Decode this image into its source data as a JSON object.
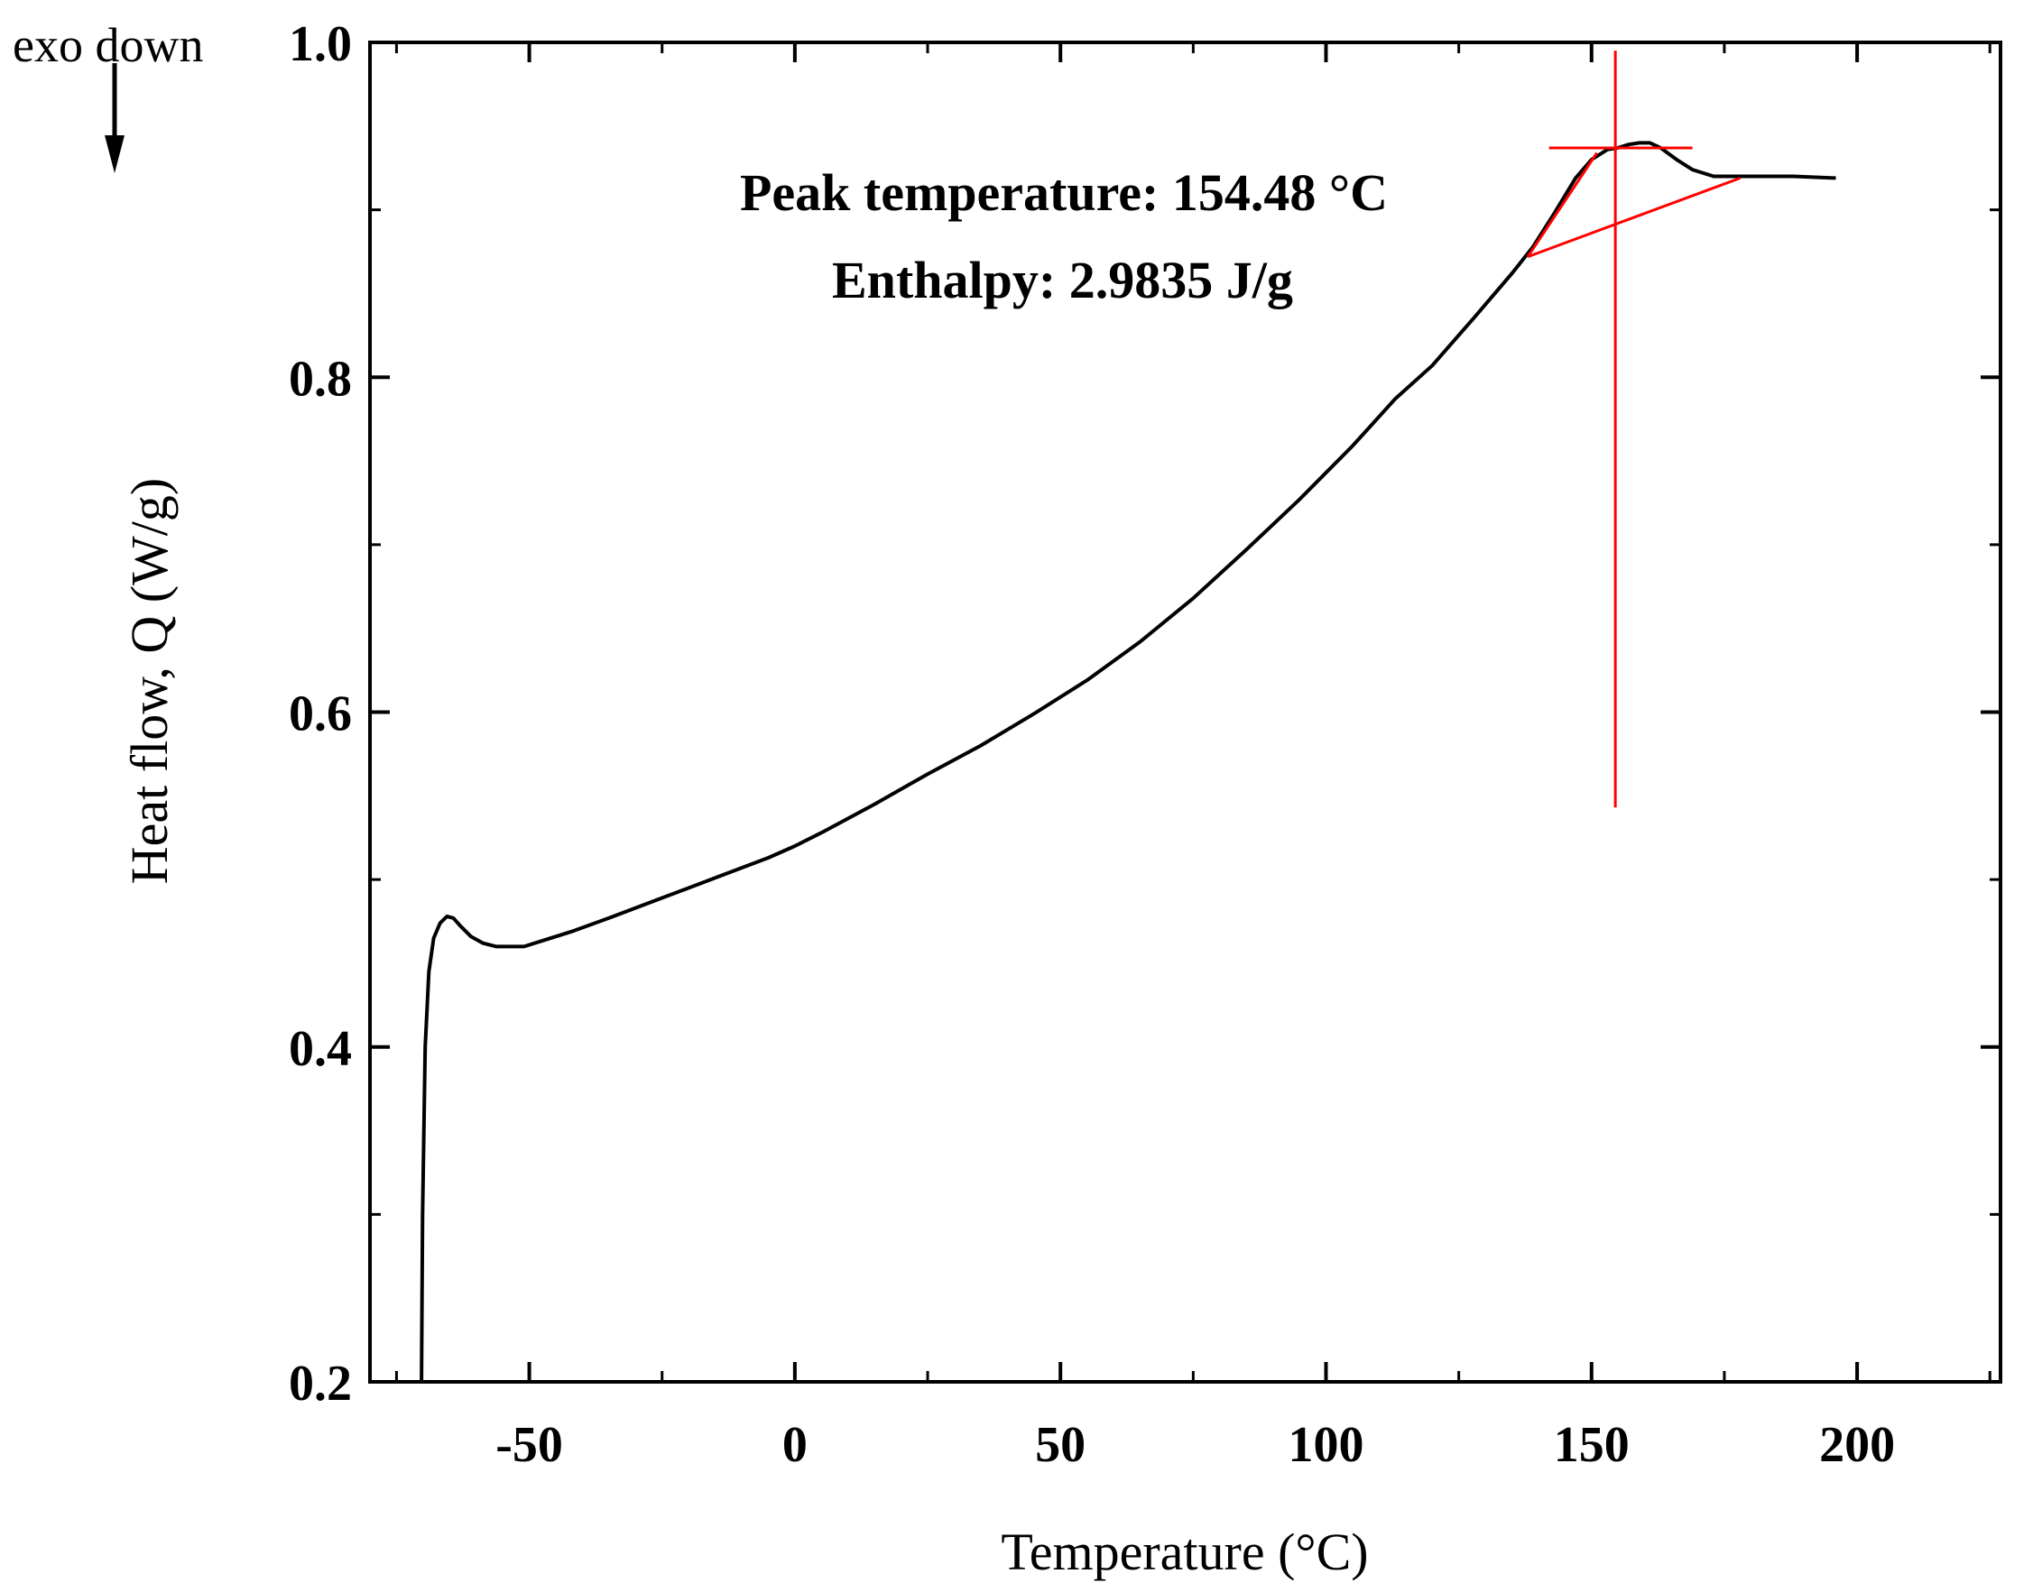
{
  "chart_data": {
    "type": "line",
    "title": "",
    "xlabel": "Temperature (°C)",
    "ylabel": "Heat flow, Q (W/g)",
    "xlim": [
      -80,
      227
    ],
    "ylim": [
      0.2,
      1.0
    ],
    "x_ticks": [
      -50,
      0,
      50,
      100,
      150,
      200
    ],
    "x_tick_labels": [
      "-50",
      "0",
      "50",
      "100",
      "150",
      "200"
    ],
    "y_ticks": [
      0.2,
      0.4,
      0.6,
      0.8,
      1.0
    ],
    "y_tick_labels": [
      "0.2",
      "0.4",
      "0.6",
      "0.8",
      "1.0"
    ],
    "grid": false,
    "series": [
      {
        "name": "Heat flow",
        "color": "#000000",
        "x": [
          -70.3,
          -70.1,
          -69.6,
          -68.9,
          -68.0,
          -66.8,
          -65.5,
          -64.3,
          -62.9,
          -61.0,
          -58.7,
          -56.2,
          -53.5,
          -51.0,
          -48.0,
          -42.0,
          -35.0,
          -25.0,
          -15.0,
          -5.0,
          0.0,
          5.0,
          15.0,
          25.0,
          35.0,
          45.0,
          55.0,
          65.0,
          75.0,
          85.0,
          95.0,
          105.0,
          113.0,
          120.0,
          128.0,
          135.0,
          139.0,
          143.0,
          147.0,
          150.0,
          153.0,
          155.0,
          157.0,
          159.0,
          161.0,
          163.0,
          166.0,
          169.0,
          173.0,
          177.0,
          182.0,
          188.0,
          196.0
        ],
        "y": [
          0.2,
          0.3,
          0.4,
          0.445,
          0.465,
          0.474,
          0.478,
          0.477,
          0.472,
          0.466,
          0.462,
          0.46,
          0.46,
          0.46,
          0.463,
          0.469,
          0.477,
          0.489,
          0.501,
          0.513,
          0.52,
          0.528,
          0.545,
          0.563,
          0.58,
          0.599,
          0.619,
          0.642,
          0.668,
          0.697,
          0.727,
          0.759,
          0.787,
          0.807,
          0.836,
          0.862,
          0.878,
          0.898,
          0.919,
          0.93,
          0.936,
          0.937,
          0.939,
          0.94,
          0.94,
          0.937,
          0.93,
          0.924,
          0.92,
          0.92,
          0.92,
          0.92,
          0.919
        ]
      }
    ],
    "annotations": {
      "peak_label": "Peak temperature: 154.48 °C",
      "enthalpy_label": "Enthalpy: 2.9835 J/g",
      "exo_label": "exo down",
      "peak_temperature": 154.48,
      "baseline_start": {
        "x": 138,
        "y": 0.872
      },
      "baseline_end": {
        "x": 178,
        "y": 0.919
      },
      "peak_marker_level": 0.937,
      "peak_marker_range": [
        142,
        169
      ],
      "vertical_marker_range": [
        0.543,
        0.995
      ],
      "shoulder_tangent_start": {
        "x": 138,
        "y": 0.872
      },
      "shoulder_tangent_end": {
        "x": 151,
        "y": 0.934
      },
      "marker_color": "#ff0000"
    }
  }
}
